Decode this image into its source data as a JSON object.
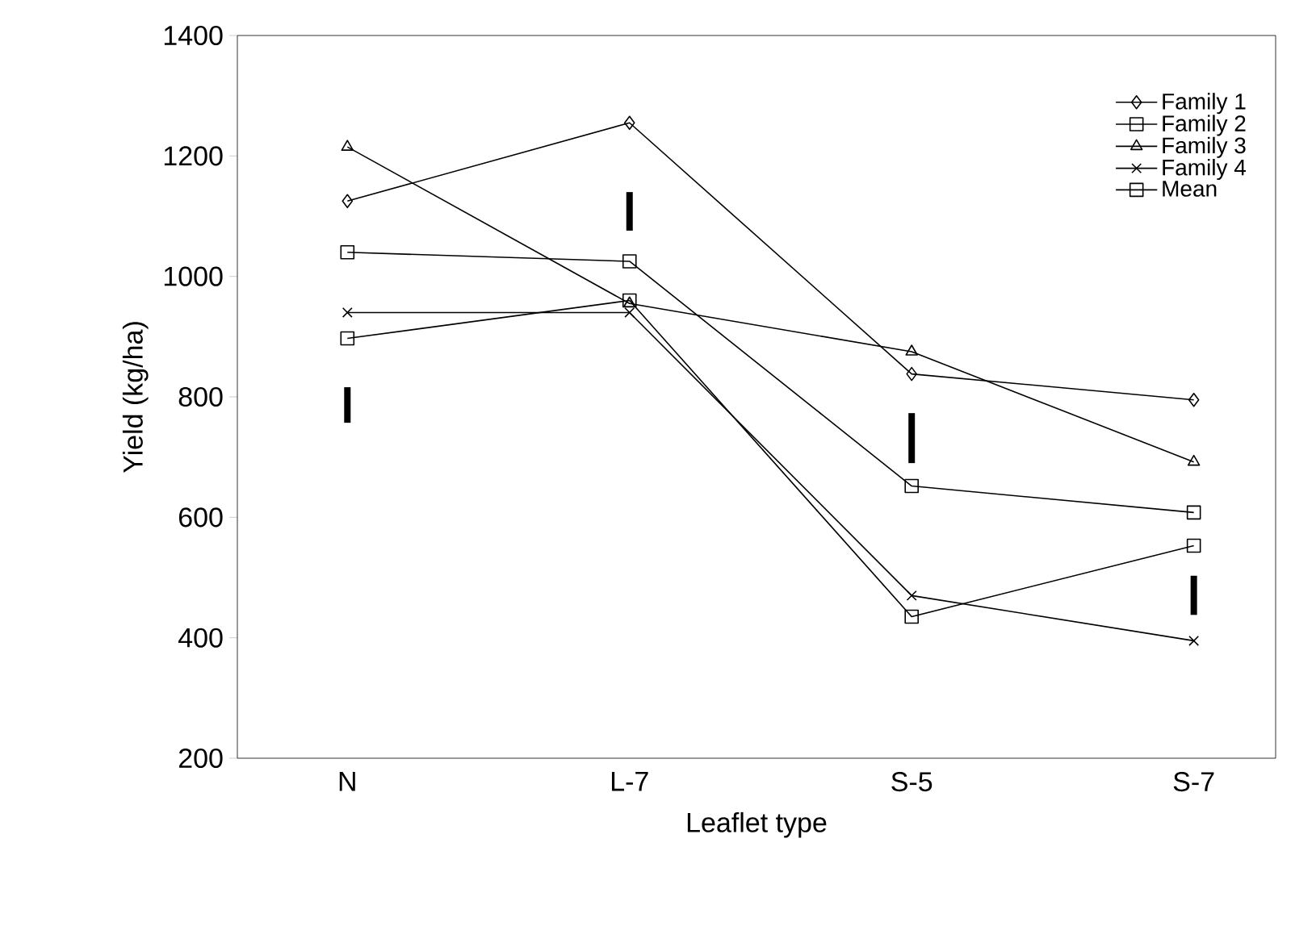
{
  "chart_data": {
    "type": "line",
    "xlabel": "Leaflet type",
    "ylabel": "Yield (kg/ha)",
    "categories": [
      "N",
      "L-7",
      "S-5",
      "S-7"
    ],
    "ylim": [
      200,
      1400
    ],
    "yticks": [
      200,
      400,
      600,
      800,
      1000,
      1200,
      1400
    ],
    "grid": false,
    "legend": "top right",
    "series": [
      {
        "name": "Family 1",
        "color": "#000000",
        "marker": "diamond",
        "values": [
          1125,
          1255,
          838,
          795
        ]
      },
      {
        "name": "Family 2",
        "color": "#000000",
        "marker": "square",
        "values": [
          897,
          960,
          435,
          553
        ]
      },
      {
        "name": "Family 3",
        "color": "#000000",
        "marker": "triangle",
        "values": [
          1215,
          955,
          875,
          692
        ]
      },
      {
        "name": "Family 4",
        "color": "#000000",
        "marker": "cross",
        "values": [
          940,
          940,
          470,
          395
        ]
      },
      {
        "name": "Mean",
        "color": "#000000",
        "marker": "square",
        "values": [
          1040,
          1025,
          652,
          608
        ]
      },
      {
        "type": "bar",
        "color": "#000000",
        "base": [
          757,
          1076,
          690,
          438
        ],
        "values": [
          59,
          64,
          83,
          65
        ]
      }
    ]
  }
}
